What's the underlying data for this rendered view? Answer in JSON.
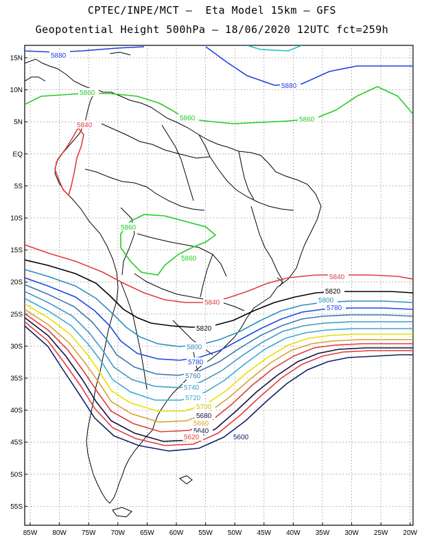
{
  "header": {
    "line1": "CPTEC/INPE/MCT –  Eta Model 15km – GFS",
    "line2": "Geopotential Height 500hPa – 18/06/2020 12UTC fct=259h"
  },
  "axes": {
    "lat_labels": [
      "15N",
      "10N",
      "5N",
      "EQ",
      "5S",
      "10S",
      "15S",
      "20S",
      "25S",
      "30S",
      "35S",
      "40S",
      "45S",
      "50S",
      "55S"
    ],
    "lon_labels": [
      "85W",
      "80W",
      "75W",
      "70W",
      "65W",
      "60W",
      "55W",
      "50W",
      "45W",
      "40W",
      "35W",
      "30W",
      "25W",
      "20W"
    ]
  },
  "contours": [
    {
      "value": "5880",
      "color": "#1f3ee0"
    },
    {
      "value": "5860",
      "color": "#22cc22"
    },
    {
      "value": "5840",
      "color": "#e03c3c"
    },
    {
      "value": "5820",
      "color": "#000000"
    },
    {
      "value": "5800",
      "color": "#2a8fbf"
    },
    {
      "value": "5780",
      "color": "#1a48e6"
    },
    {
      "value": "5760",
      "color": "#3a78b0"
    },
    {
      "value": "5740",
      "color": "#3a9ac8"
    },
    {
      "value": "5720",
      "color": "#3aa6d6"
    },
    {
      "value": "5700",
      "color": "#e8e000"
    },
    {
      "value": "5680",
      "color": "#d8a030"
    },
    {
      "value": "5660",
      "color": "#e03c3c"
    },
    {
      "value": "5640",
      "color": "#101040"
    },
    {
      "value": "5620",
      "color": "#e03c3c"
    },
    {
      "value": "5600",
      "color": "#102060"
    }
  ],
  "labels": {
    "l5880a": "5880",
    "l5880b": "5880",
    "l5860a": "5860",
    "l5860b": "5860",
    "l5860c": "5860",
    "l5860d": "5860",
    "l5860e": "5860",
    "l5840a": "5840",
    "l5840b": "5840",
    "l5840c": "5840",
    "l5820a": "5820",
    "l5820b": "5820",
    "l5800a": "5800",
    "l5800b": "5800",
    "l5780a": "5780",
    "l5780b": "5780",
    "l5760": "5760",
    "l5740": "5740",
    "l5720": "5720",
    "l5700": "5700",
    "l5680": "5680",
    "l5660": "5660",
    "l5640": "5640",
    "l5620": "5620",
    "l5600": "5600"
  }
}
